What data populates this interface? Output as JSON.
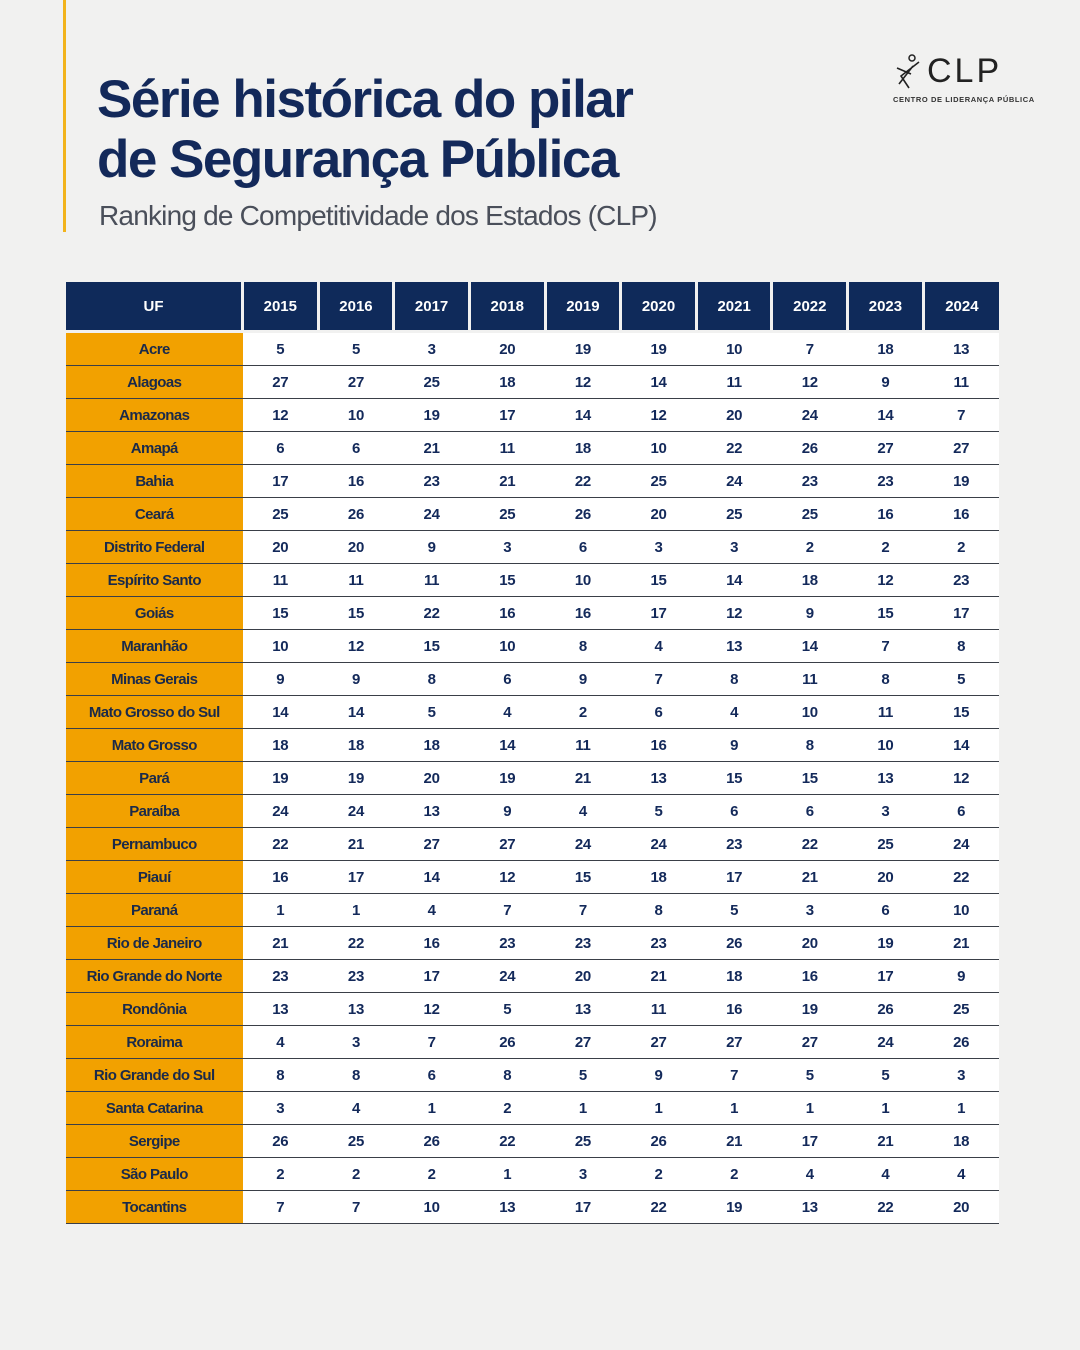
{
  "header": {
    "title_line1": "Série histórica do pilar",
    "title_line2": "de Segurança Pública",
    "subtitle": "Ranking de Competitividade dos Estados (CLP)"
  },
  "logo": {
    "text": "CLP",
    "subtitle": "CENTRO DE LIDERANÇA PÚBLICA"
  },
  "colors": {
    "navy": "#0f2a5a",
    "orange": "#f2a100",
    "accent": "#f2b31b"
  },
  "table": {
    "columns": [
      "UF",
      "2015",
      "2016",
      "2017",
      "2018",
      "2019",
      "2020",
      "2021",
      "2022",
      "2023",
      "2024"
    ],
    "rows": [
      [
        "Acre",
        5,
        5,
        3,
        20,
        19,
        19,
        10,
        7,
        18,
        13
      ],
      [
        "Alagoas",
        27,
        27,
        25,
        18,
        12,
        14,
        11,
        12,
        9,
        11
      ],
      [
        "Amazonas",
        12,
        10,
        19,
        17,
        14,
        12,
        20,
        24,
        14,
        7
      ],
      [
        "Amapá",
        6,
        6,
        21,
        11,
        18,
        10,
        22,
        26,
        27,
        27
      ],
      [
        "Bahia",
        17,
        16,
        23,
        21,
        22,
        25,
        24,
        23,
        23,
        19
      ],
      [
        "Ceará",
        25,
        26,
        24,
        25,
        26,
        20,
        25,
        25,
        16,
        16
      ],
      [
        "Distrito Federal",
        20,
        20,
        9,
        3,
        6,
        3,
        3,
        2,
        2,
        2
      ],
      [
        "Espírito Santo",
        11,
        11,
        11,
        15,
        10,
        15,
        14,
        18,
        12,
        23
      ],
      [
        "Goiás",
        15,
        15,
        22,
        16,
        16,
        17,
        12,
        9,
        15,
        17
      ],
      [
        "Maranhão",
        10,
        12,
        15,
        10,
        8,
        4,
        13,
        14,
        7,
        8
      ],
      [
        "Minas Gerais",
        9,
        9,
        8,
        6,
        9,
        7,
        8,
        11,
        8,
        5
      ],
      [
        "Mato Grosso do Sul",
        14,
        14,
        5,
        4,
        2,
        6,
        4,
        10,
        11,
        15
      ],
      [
        "Mato Grosso",
        18,
        18,
        18,
        14,
        11,
        16,
        9,
        8,
        10,
        14
      ],
      [
        "Pará",
        19,
        19,
        20,
        19,
        21,
        13,
        15,
        15,
        13,
        12
      ],
      [
        "Paraíba",
        24,
        24,
        13,
        9,
        4,
        5,
        6,
        6,
        3,
        6
      ],
      [
        "Pernambuco",
        22,
        21,
        27,
        27,
        24,
        24,
        23,
        22,
        25,
        24
      ],
      [
        "Piauí",
        16,
        17,
        14,
        12,
        15,
        18,
        17,
        21,
        20,
        22
      ],
      [
        "Paraná",
        1,
        1,
        4,
        7,
        7,
        8,
        5,
        3,
        6,
        10
      ],
      [
        "Rio de Janeiro",
        21,
        22,
        16,
        23,
        23,
        23,
        26,
        20,
        19,
        21
      ],
      [
        "Rio Grande do Norte",
        23,
        23,
        17,
        24,
        20,
        21,
        18,
        16,
        17,
        9
      ],
      [
        "Rondônia",
        13,
        13,
        12,
        5,
        13,
        11,
        16,
        19,
        26,
        25
      ],
      [
        "Roraima",
        4,
        3,
        7,
        26,
        27,
        27,
        27,
        27,
        24,
        26
      ],
      [
        "Rio Grande do Sul",
        8,
        8,
        6,
        8,
        5,
        9,
        7,
        5,
        5,
        3
      ],
      [
        "Santa Catarina",
        3,
        4,
        1,
        2,
        1,
        1,
        1,
        1,
        1,
        1
      ],
      [
        "Sergipe",
        26,
        25,
        26,
        22,
        25,
        26,
        21,
        17,
        21,
        18
      ],
      [
        "São Paulo",
        2,
        2,
        2,
        1,
        3,
        2,
        2,
        4,
        4,
        4
      ],
      [
        "Tocantins",
        7,
        7,
        10,
        13,
        17,
        22,
        19,
        13,
        22,
        20
      ]
    ]
  }
}
